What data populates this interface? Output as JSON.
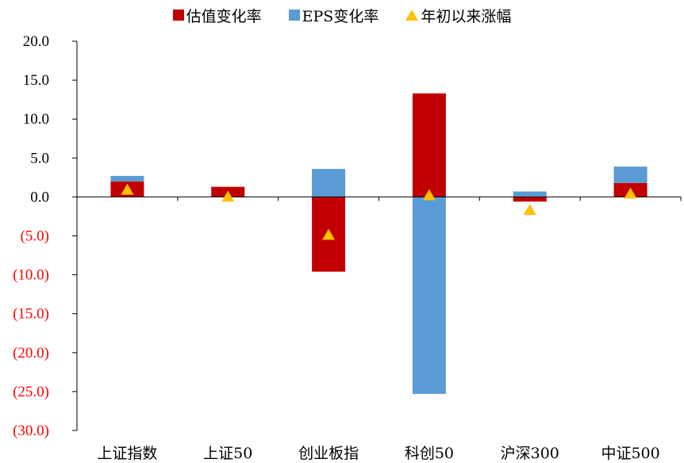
{
  "legend": {
    "item0": "估值变化率",
    "item1": "EPS变化率",
    "item2": "年初以来涨幅"
  },
  "chart_data": {
    "type": "bar",
    "stacked": true,
    "categories": [
      "上证指数",
      "上证50",
      "创业板指",
      "科创50",
      "沪深300",
      "中证500"
    ],
    "series": [
      {
        "name": "估值变化率",
        "type": "bar",
        "color": "#c00000",
        "values": [
          2.0,
          1.3,
          -9.6,
          13.3,
          -0.6,
          1.8
        ]
      },
      {
        "name": "EPS变化率",
        "type": "bar",
        "color": "#5b9bd5",
        "values": [
          0.7,
          0.0,
          3.6,
          -25.3,
          0.7,
          2.1
        ]
      },
      {
        "name": "年初以来涨幅",
        "type": "marker",
        "color": "#ffc000",
        "values": [
          1.0,
          0.1,
          -4.8,
          0.3,
          -1.6,
          0.5
        ]
      }
    ],
    "ylim": [
      -30,
      20
    ],
    "y_ticks": [
      20,
      15,
      10,
      5,
      0,
      -5,
      -10,
      -15,
      -20,
      -25,
      -30
    ],
    "y_tick_labels": [
      "20.0",
      "15.0",
      "10.0",
      "5.0",
      "0.0",
      "(5.0)",
      "(10.0)",
      "(15.0)",
      "(20.0)",
      "(25.0)",
      "(30.0)"
    ],
    "negative_label_color": "#ff0000",
    "legend_position": "top",
    "grid": false,
    "title": "",
    "xlabel": "",
    "ylabel": ""
  }
}
